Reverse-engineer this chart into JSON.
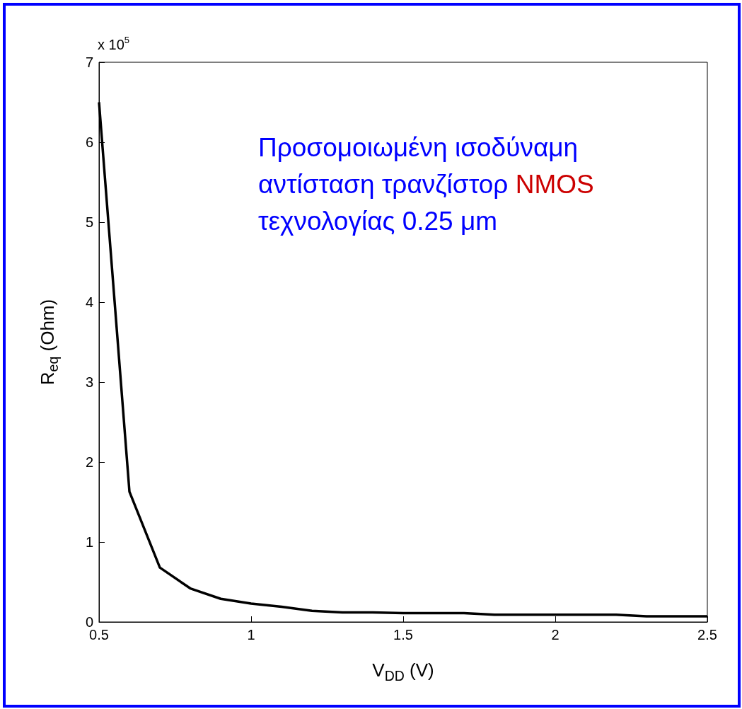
{
  "chart_data": {
    "type": "line",
    "xlabel": "V$_{DD}$ (V)",
    "ylabel": "R$_{eq}$ (Ohm)",
    "annotations": [
      "x 10$^{5}$",
      "Προσομοιωμένη ισοδύναμη\nαντίσταση τρανζίστορ NMOS\nτεχνολογίας 0.25 μm"
    ],
    "x": [
      0.5,
      0.6,
      0.7,
      0.8,
      0.9,
      1.0,
      1.1,
      1.2,
      1.3,
      1.4,
      1.5,
      1.6,
      1.7,
      1.8,
      1.9,
      2.0,
      2.1,
      2.2,
      2.3,
      2.4,
      2.5
    ],
    "series": [
      {
        "color": "#000000",
        "values": [
          6.5,
          1.63,
          0.68,
          0.42,
          0.29,
          0.23,
          0.19,
          0.14,
          0.12,
          0.12,
          0.11,
          0.11,
          0.11,
          0.09,
          0.09,
          0.09,
          0.09,
          0.09,
          0.07,
          0.07,
          0.07
        ]
      }
    ],
    "xlim": [
      0.5,
      2.5
    ],
    "xticks": [
      0.5,
      1,
      1.5,
      2,
      2.5
    ],
    "ylim": [
      0,
      7
    ],
    "yticks": [
      0,
      1,
      2,
      3,
      4,
      5,
      6,
      7
    ],
    "grid": false,
    "marker": "none",
    "line_style": "solid"
  }
}
